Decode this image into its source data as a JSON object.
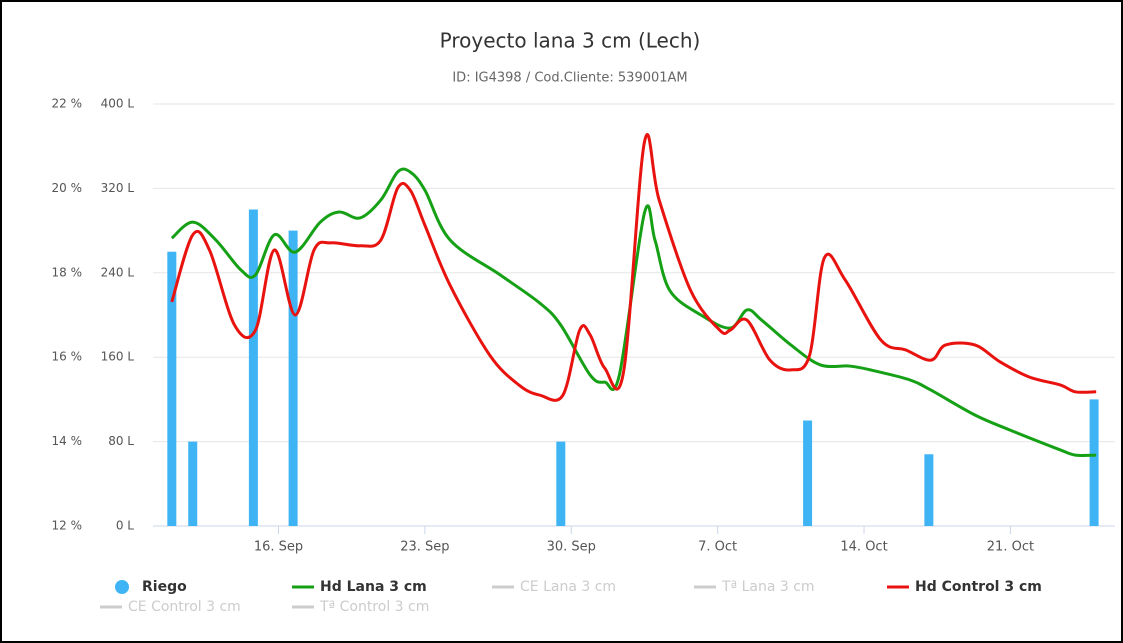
{
  "chart_data": {
    "type": "line",
    "title": "Proyecto lana 3 cm (Lech)",
    "subtitle": "ID: IG4398 / Cod.Cliente: 539001AM",
    "xlim": [
      10,
      56
    ],
    "xticks": [
      {
        "value": 16,
        "label": "16. Sep"
      },
      {
        "value": 23,
        "label": "23. Sep"
      },
      {
        "value": 30,
        "label": "30. Sep"
      },
      {
        "value": 37,
        "label": "7. Oct"
      },
      {
        "value": 44,
        "label": "14. Oct"
      },
      {
        "value": 51,
        "label": "21. Oct"
      }
    ],
    "ylim": [
      12,
      22
    ],
    "yticks": [
      {
        "value": 12,
        "label": "12 %"
      },
      {
        "value": 14,
        "label": "14 %"
      },
      {
        "value": 16,
        "label": "16 %"
      },
      {
        "value": 18,
        "label": "18 %"
      },
      {
        "value": 20,
        "label": "20 %"
      },
      {
        "value": 22,
        "label": "22 %"
      }
    ],
    "y2lim": [
      0,
      400
    ],
    "y2ticks": [
      {
        "value": 0,
        "label": "0 L"
      },
      {
        "value": 80,
        "label": "80 L"
      },
      {
        "value": 160,
        "label": "160 L"
      },
      {
        "value": 240,
        "label": "240 L"
      },
      {
        "value": 320,
        "label": "320 L"
      },
      {
        "value": 400,
        "label": "400 L"
      }
    ],
    "grid": true,
    "legend": "bottom",
    "series": [
      {
        "name": "Riego",
        "type": "bar",
        "axis": "y2",
        "color": "#3fb4f5",
        "x": [
          10.9,
          11.9,
          14.8,
          16.7,
          29.5,
          41.3,
          47.1,
          55.0
        ],
        "values": [
          260,
          80,
          300,
          280,
          80,
          100,
          68,
          120
        ]
      },
      {
        "name": "Hd Lana 3 cm",
        "type": "line",
        "color": "#15a015",
        "x": [
          10.9,
          11.9,
          13.0,
          14.2,
          14.9,
          15.8,
          16.8,
          18.0,
          18.9,
          19.9,
          20.9,
          21.7,
          22.3,
          23.0,
          24.2,
          26.6,
          28.5,
          29.5,
          30.9,
          31.6,
          32.3,
          33.5,
          34.0,
          34.7,
          36.2,
          37.6,
          38.4,
          39.1,
          40.5,
          41.9,
          43.3,
          44.3,
          46.2,
          47.2,
          49.3,
          51.0,
          53.4,
          54.1,
          55.1
        ],
        "values": [
          18.82,
          19.2,
          18.78,
          18.07,
          17.95,
          18.9,
          18.49,
          19.2,
          19.44,
          19.3,
          19.73,
          20.39,
          20.39,
          19.96,
          18.78,
          17.95,
          17.28,
          16.76,
          15.58,
          15.41,
          15.58,
          19.42,
          18.78,
          17.59,
          17.0,
          16.69,
          17.12,
          16.88,
          16.29,
          15.82,
          15.79,
          15.7,
          15.46,
          15.22,
          14.63,
          14.27,
          13.8,
          13.68,
          13.68
        ]
      },
      {
        "name": "CE Lana 3 cm",
        "visible": false,
        "color": "#cccccc"
      },
      {
        "name": "Tª Lana 3 cm",
        "visible": false,
        "color": "#cccccc"
      },
      {
        "name": "Hd Control 3 cm",
        "type": "line",
        "color": "#e8130f",
        "x": [
          10.9,
          11.9,
          12.7,
          13.9,
          14.9,
          15.8,
          16.8,
          17.7,
          18.5,
          19.9,
          20.9,
          21.7,
          22.3,
          23.0,
          24.2,
          26.1,
          27.5,
          28.5,
          29.6,
          30.4,
          30.9,
          31.6,
          32.5,
          33.5,
          34.2,
          35.7,
          37.1,
          37.6,
          38.4,
          39.5,
          40.5,
          41.4,
          42.1,
          43.1,
          44.8,
          46.0,
          47.2,
          47.9,
          49.3,
          50.5,
          51.9,
          53.4,
          54.1,
          55.1
        ],
        "values": [
          17.31,
          18.9,
          18.54,
          16.76,
          16.64,
          18.54,
          17.0,
          18.54,
          18.71,
          18.64,
          18.78,
          20.01,
          19.96,
          19.13,
          17.71,
          16.05,
          15.34,
          15.1,
          15.1,
          16.64,
          16.53,
          15.74,
          15.65,
          21.1,
          19.73,
          17.59,
          16.64,
          16.64,
          16.88,
          15.93,
          15.7,
          16.05,
          18.35,
          17.83,
          16.41,
          16.17,
          15.93,
          16.29,
          16.29,
          15.89,
          15.53,
          15.34,
          15.18,
          15.18
        ]
      },
      {
        "name": "CE Control 3 cm",
        "visible": false,
        "color": "#cccccc"
      },
      {
        "name": "Tª Control 3 cm",
        "visible": false,
        "color": "#cccccc"
      }
    ]
  }
}
